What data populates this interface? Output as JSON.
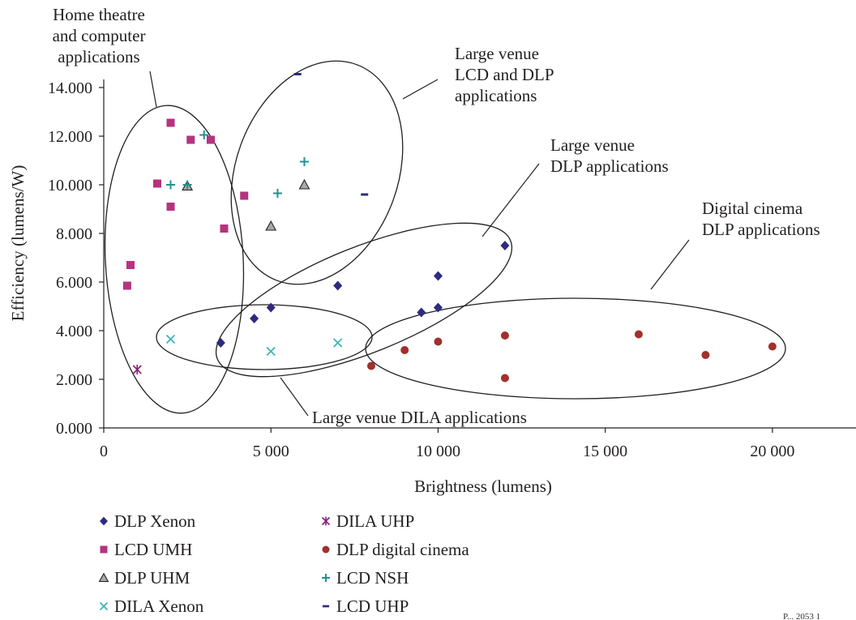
{
  "chart_data": {
    "type": "scatter",
    "title": "",
    "xlabel": "Brightness (lumens)",
    "ylabel": "Efficiency (lumens/W)",
    "xlim": [
      0,
      22500
    ],
    "ylim": [
      0,
      15000
    ],
    "x_ticks": [
      0,
      5000,
      10000,
      15000,
      20000
    ],
    "x_tick_labels": [
      "0",
      "5 000",
      "10 000",
      "15 000",
      "20 000"
    ],
    "y_ticks": [
      0,
      2000,
      4000,
      6000,
      8000,
      10000,
      12000,
      14000
    ],
    "y_tick_labels": [
      "0.000",
      "2.000",
      "4.000",
      "6.000",
      "8.000",
      "10.000",
      "12.000",
      "14.000"
    ],
    "grid": false,
    "legend_position": "bottom",
    "series": [
      {
        "name": "DLP Xenon",
        "marker": "diamond",
        "color": "#2e2b7f",
        "points": [
          [
            3500,
            3500
          ],
          [
            4500,
            4500
          ],
          [
            5000,
            4950
          ],
          [
            7000,
            5850
          ],
          [
            9500,
            4750
          ],
          [
            10000,
            4950
          ],
          [
            10000,
            6250
          ],
          [
            12000,
            7500
          ]
        ]
      },
      {
        "name": "LCD UMH",
        "marker": "square",
        "color": "#b5337f",
        "points": [
          [
            700,
            5850
          ],
          [
            800,
            6700
          ],
          [
            1600,
            10050
          ],
          [
            2000,
            12550
          ],
          [
            2000,
            9100
          ],
          [
            2600,
            11850
          ],
          [
            3200,
            11850
          ],
          [
            3600,
            8200
          ],
          [
            4200,
            9550
          ]
        ]
      },
      {
        "name": "DLP UHM",
        "marker": "triangle",
        "color": "#6d6e71",
        "points": [
          [
            2500,
            9950
          ],
          [
            5000,
            8300
          ],
          [
            6000,
            10000
          ]
        ]
      },
      {
        "name": "DILA Xenon",
        "marker": "x",
        "color": "#3fb4b8",
        "points": [
          [
            2000,
            3650
          ],
          [
            5000,
            3150
          ],
          [
            7000,
            3500
          ]
        ]
      },
      {
        "name": "DILA UHP",
        "marker": "asterisk",
        "color": "#8a1c7c",
        "points": [
          [
            1000,
            2400
          ]
        ]
      },
      {
        "name": "DLP digital cinema",
        "marker": "circle",
        "color": "#a2302b",
        "points": [
          [
            8000,
            2550
          ],
          [
            9000,
            3200
          ],
          [
            10000,
            3550
          ],
          [
            12000,
            3800
          ],
          [
            12000,
            2050
          ],
          [
            16000,
            3850
          ],
          [
            18000,
            3000
          ],
          [
            20000,
            3350
          ]
        ]
      },
      {
        "name": "LCD NSH",
        "marker": "plus",
        "color": "#23918f",
        "points": [
          [
            2000,
            10000
          ],
          [
            2500,
            10000
          ],
          [
            3000,
            12050
          ],
          [
            5200,
            9650
          ],
          [
            6000,
            10950
          ]
        ]
      },
      {
        "name": "LCD UHP",
        "marker": "dash",
        "color": "#2e2b7f",
        "points": [
          [
            5800,
            14550
          ],
          [
            7800,
            9600
          ]
        ]
      }
    ],
    "annotations": [
      {
        "text": [
          "Home theatre",
          "and computer",
          "applications"
        ]
      },
      {
        "text": [
          "Large venue",
          "LCD and DLP",
          "applications"
        ]
      },
      {
        "text": [
          "Large venue",
          "DLP applications"
        ]
      },
      {
        "text": [
          "Digital cinema",
          "DLP applications"
        ]
      },
      {
        "text": [
          "Large venue DILA applications"
        ]
      }
    ],
    "corner_text": "P... 2053 1"
  }
}
